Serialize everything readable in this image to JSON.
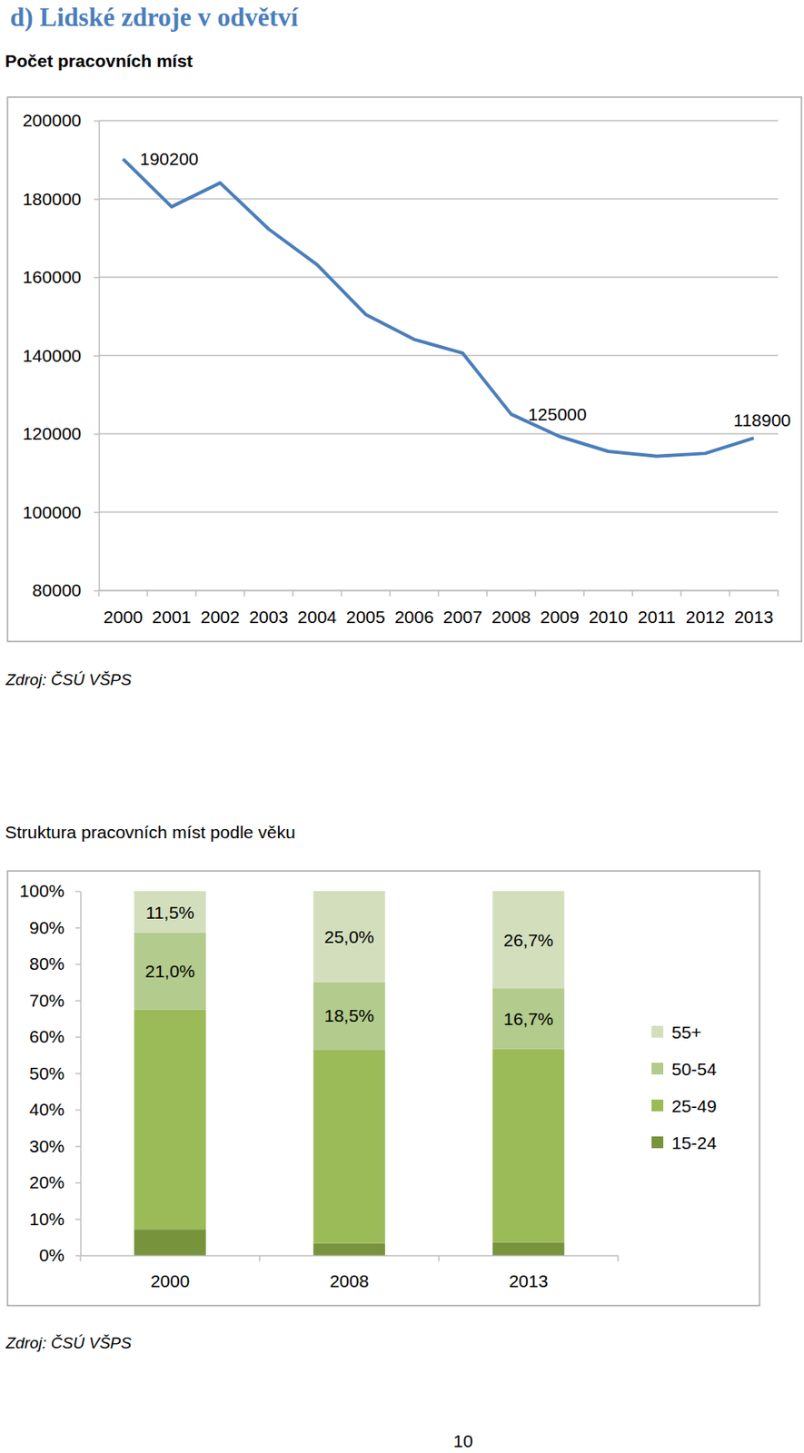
{
  "page": {
    "heading": "d) Lidské zdroje v odvětví",
    "page_number": 10
  },
  "chart_data": [
    {
      "type": "line",
      "title": "Počet pracovních míst",
      "categories": [
        "2000",
        "2001",
        "2002",
        "2003",
        "2004",
        "2005",
        "2006",
        "2007",
        "2008",
        "2009",
        "2010",
        "2011",
        "2012",
        "2013"
      ],
      "values": [
        190200,
        178000,
        184100,
        172300,
        163200,
        150500,
        144100,
        140600,
        125000,
        119300,
        115500,
        114300,
        115000,
        118900
      ],
      "color": "#4a7ebb",
      "ylim": [
        80000,
        200000
      ],
      "yticks": [
        80000,
        100000,
        120000,
        140000,
        160000,
        180000,
        200000
      ],
      "grid": true,
      "annotations": [
        {
          "x": "2000",
          "text": "190200"
        },
        {
          "x": "2008",
          "text": "125000"
        },
        {
          "x": "2013",
          "text": "118900"
        }
      ],
      "source": "Zdroj: ČSÚ VŠPS"
    },
    {
      "type": "bar",
      "stacked": true,
      "title": "Struktura pracovních míst podle věku",
      "categories": [
        "2000",
        "2008",
        "2013"
      ],
      "series": [
        {
          "name": "15-24",
          "color": "#77933c",
          "values": [
            7.1,
            3.3,
            3.6
          ]
        },
        {
          "name": "25-49",
          "color": "#9bbb59",
          "values": [
            60.4,
            53.2,
            53.0
          ]
        },
        {
          "name": "50-54",
          "color": "#b3cb8c",
          "values": [
            21.0,
            18.5,
            16.7
          ],
          "value_labels": [
            "21,0%",
            "18,5%",
            "16,7%"
          ]
        },
        {
          "name": "55+",
          "color": "#d3dfbc",
          "values": [
            11.5,
            25.0,
            26.7
          ],
          "value_labels": [
            "11,5%",
            "25,0%",
            "26,7%"
          ]
        }
      ],
      "ylim": [
        0,
        100
      ],
      "yticks": [
        {
          "value": 0,
          "label": "0%"
        },
        {
          "value": 10,
          "label": "10%"
        },
        {
          "value": 20,
          "label": "20%"
        },
        {
          "value": 30,
          "label": "30%"
        },
        {
          "value": 40,
          "label": "40%"
        },
        {
          "value": 50,
          "label": "50%"
        },
        {
          "value": 60,
          "label": "60%"
        },
        {
          "value": 70,
          "label": "70%"
        },
        {
          "value": 80,
          "label": "80%"
        },
        {
          "value": 90,
          "label": "90%"
        },
        {
          "value": 100,
          "label": "100%"
        }
      ],
      "grid": false,
      "legend": "right",
      "data_labels": true,
      "source": "Zdroj: ČSÚ VŠPS"
    }
  ]
}
